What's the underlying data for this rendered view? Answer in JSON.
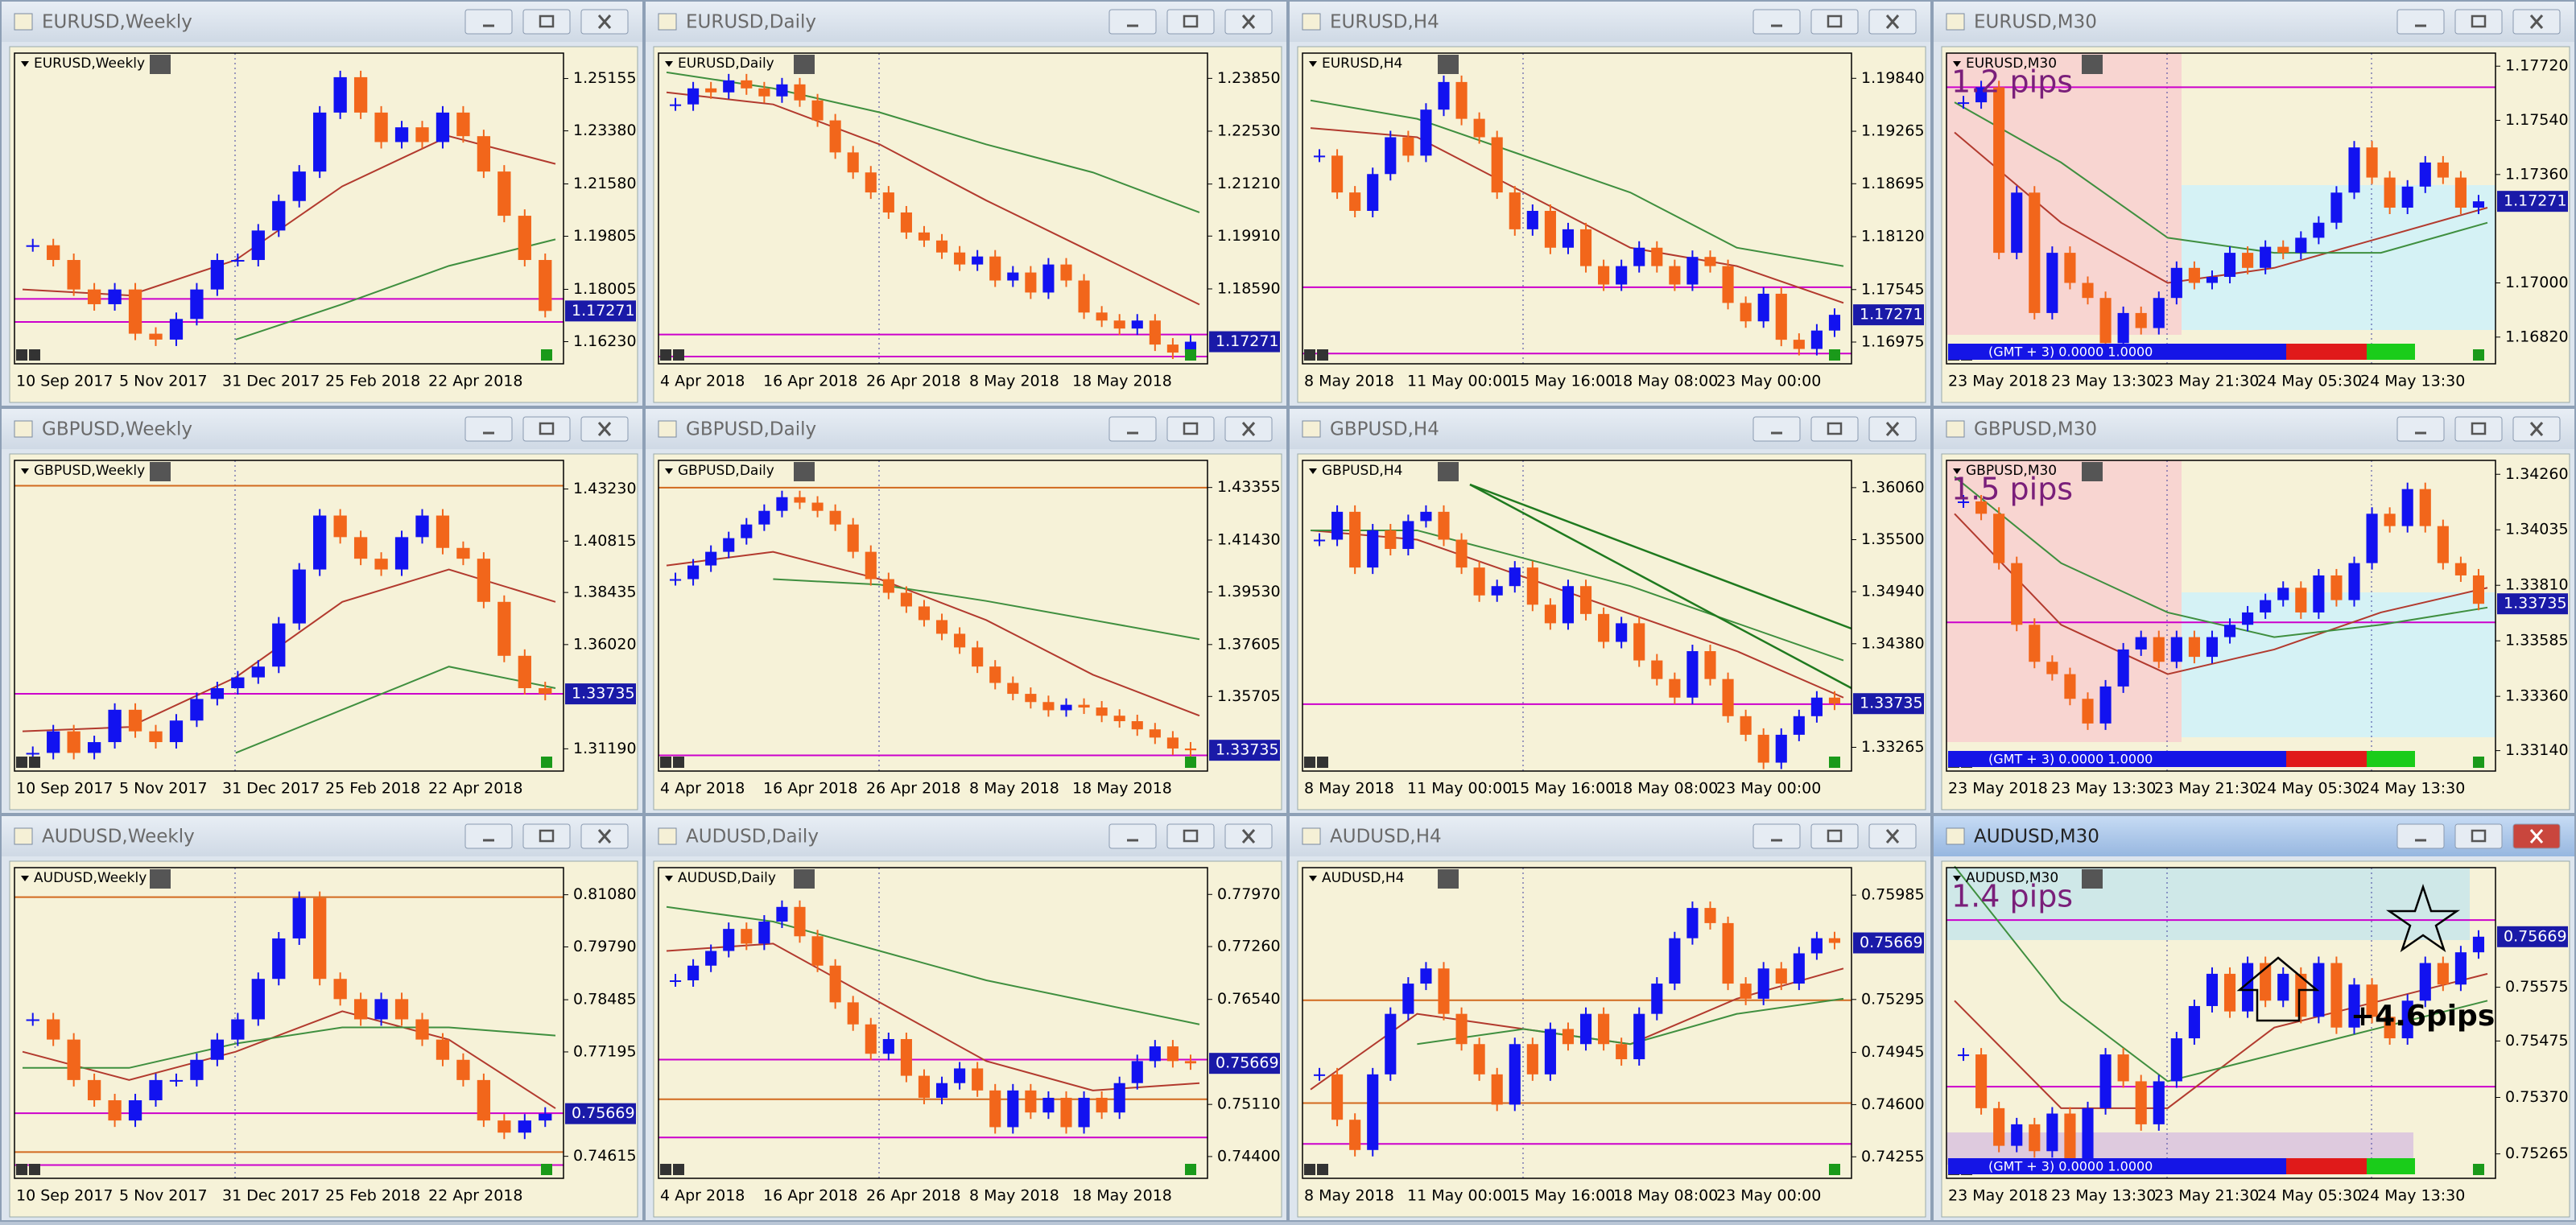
{
  "style": {
    "up": "#1212f0",
    "down": "#f2661b",
    "ma_fast": "#b23a2e",
    "ma_slow": "#3f8f3f",
    "price_box": "#1a1aa8"
  },
  "chart_data": [
    {
      "type": "candlestick",
      "title": "EURUSD,Weekly",
      "x_labels": [
        "10 Sep 2017",
        "5 Nov 2017",
        "31 Dec 2017",
        "25 Feb 2018",
        "22 Apr 2018"
      ],
      "ylim": [
        1.1567,
        1.2588
      ],
      "yticks": [
        1.25155,
        {
          "value": 1.2338,
          "label": "1.23380"
        },
        {
          "value": 1.2158,
          "label": "1.21580"
        },
        1.19805,
        1.18005,
        {
          "value": 1.1623,
          "label": "1.16230"
        }
      ],
      "price": 1.17271,
      "levels": [
        {
          "value": 1.1768,
          "color": "#cc00cc"
        },
        {
          "value": 1.169,
          "color": "#cc00cc"
        }
      ],
      "closes": [
        1.195,
        1.19,
        1.18,
        1.175,
        1.18,
        1.165,
        1.163,
        1.17,
        1.18,
        1.19,
        1.19,
        1.2,
        1.21,
        1.22,
        1.24,
        1.252,
        1.24,
        1.23,
        1.235,
        1.23,
        1.24,
        1.232,
        1.22,
        1.205,
        1.19,
        1.17271
      ],
      "ma_fast": [
        1.18,
        1.178,
        1.19,
        1.215,
        1.232,
        1.2226
      ],
      "ma_slow": [
        null,
        null,
        1.163,
        1.175,
        1.188,
        1.197
      ]
    },
    {
      "type": "candlestick",
      "title": "EURUSD,Daily",
      "x_labels": [
        "4 Apr 2018",
        "16 Apr 2018",
        "26 Apr 2018",
        "8 May 2018",
        "18 May 2018"
      ],
      "ylim": [
        1.1686,
        1.2438
      ],
      "yticks": [
        {
          "value": 1.2385,
          "label": "1.23850"
        },
        {
          "value": 1.2253,
          "label": "1.22530"
        },
        {
          "value": 1.2121,
          "label": "1.21210"
        },
        {
          "value": 1.1991,
          "label": "1.19910"
        },
        {
          "value": 1.1859,
          "label": "1.18590"
        }
      ],
      "price": 1.17271,
      "levels": [
        {
          "value": 1.1745,
          "color": "#cc00cc"
        },
        {
          "value": 1.169,
          "color": "#cc00cc"
        }
      ],
      "closes": [
        1.232,
        1.236,
        1.235,
        1.238,
        1.236,
        1.234,
        1.237,
        1.233,
        1.228,
        1.22,
        1.215,
        1.21,
        1.205,
        1.2,
        1.198,
        1.195,
        1.192,
        1.194,
        1.188,
        1.19,
        1.185,
        1.192,
        1.188,
        1.18,
        1.178,
        1.176,
        1.178,
        1.172,
        1.17,
        1.17271
      ],
      "ma_fast": [
        1.235,
        1.232,
        1.222,
        1.208,
        1.195,
        1.182
      ],
      "ma_slow": [
        1.24,
        1.236,
        1.23,
        1.222,
        1.215,
        1.205
      ]
    },
    {
      "type": "candlestick",
      "title": "EURUSD,H4",
      "x_labels": [
        "8 May 2018",
        "11 May 00:00",
        "15 May 16:00",
        "18 May 08:00",
        "23 May 00:00"
      ],
      "ylim": [
        1.168,
        1.2007
      ],
      "yticks": [
        {
          "value": 1.1984,
          "label": "1.19840"
        },
        1.19265,
        1.18695,
        {
          "value": 1.1812,
          "label": "1.18120"
        },
        1.17545,
        1.16975
      ],
      "price": 1.17271,
      "levels": [
        {
          "value": 1.1757,
          "color": "#cc00cc"
        },
        {
          "value": 1.1685,
          "color": "#cc00cc"
        }
      ],
      "closes": [
        1.19,
        1.186,
        1.184,
        1.188,
        1.192,
        1.19,
        1.195,
        1.198,
        1.194,
        1.192,
        1.186,
        1.182,
        1.184,
        1.18,
        1.182,
        1.178,
        1.176,
        1.178,
        1.18,
        1.178,
        1.176,
        1.179,
        1.178,
        1.174,
        1.172,
        1.175,
        1.17,
        1.169,
        1.171,
        1.17271
      ],
      "ma_fast": [
        1.193,
        1.192,
        1.186,
        1.18,
        1.178,
        1.174
      ],
      "ma_slow": [
        1.196,
        1.194,
        1.19,
        1.186,
        1.18,
        1.178
      ]
    },
    {
      "type": "candlestick",
      "title": "EURUSD,M30",
      "x_labels": [
        "23 May 2018",
        "23 May 13:30",
        "23 May 21:30",
        "24 May 05:30",
        "24 May 13:30"
      ],
      "ylim": [
        1.1675,
        1.1775
      ],
      "yticks": [
        {
          "value": 1.1772,
          "label": "1.17720"
        },
        {
          "value": 1.1754,
          "label": "1.17540"
        },
        {
          "value": 1.1736,
          "label": "1.17360"
        },
        {
          "value": 1.17,
          "label": "1.17000"
        },
        {
          "value": 1.1682,
          "label": "1.16820"
        }
      ],
      "price": 1.17271,
      "levels": [
        {
          "value": 1.1765,
          "color": "#cc00cc"
        }
      ],
      "pips": "1.2 pips",
      "status": "(GMT + 3) 0.0000 1.0000",
      "closes": [
        1.176,
        1.1765,
        1.171,
        1.173,
        1.169,
        1.171,
        1.17,
        1.1695,
        1.168,
        1.169,
        1.1685,
        1.1695,
        1.1705,
        1.17,
        1.1702,
        1.171,
        1.1705,
        1.1712,
        1.171,
        1.1715,
        1.172,
        1.173,
        1.1745,
        1.1735,
        1.1725,
        1.1732,
        1.174,
        1.1735,
        1.1725,
        1.17271
      ],
      "ma_fast": [
        1.175,
        1.172,
        1.17,
        1.1705,
        1.1715,
        1.1725
      ],
      "ma_slow": [
        1.176,
        1.174,
        1.1715,
        1.171,
        1.171,
        1.172
      ]
    },
    {
      "type": "candlestick",
      "title": "GBPUSD,Weekly",
      "x_labels": [
        "10 Sep 2017",
        "5 Nov 2017",
        "31 Dec 2017",
        "25 Feb 2018",
        "22 Apr 2018"
      ],
      "ylim": [
        1.3042,
        1.4437
      ],
      "yticks": [
        {
          "value": 1.4323,
          "label": "1.43230"
        },
        1.40815,
        1.38435,
        {
          "value": 1.3602,
          "label": "1.36020"
        },
        {
          "value": 1.3119,
          "label": "1.31190"
        }
      ],
      "price": 1.33735,
      "levels": [
        {
          "value": 1.4338,
          "color": "#d2691e"
        },
        {
          "value": 1.3374,
          "color": "#cc00cc"
        }
      ],
      "closes": [
        1.31,
        1.32,
        1.31,
        1.315,
        1.33,
        1.32,
        1.315,
        1.325,
        1.335,
        1.34,
        1.345,
        1.35,
        1.37,
        1.395,
        1.42,
        1.41,
        1.4,
        1.395,
        1.41,
        1.42,
        1.405,
        1.4,
        1.38,
        1.355,
        1.34,
        1.33735
      ],
      "ma_fast": [
        1.32,
        1.322,
        1.345,
        1.38,
        1.395,
        1.38
      ],
      "ma_slow": [
        null,
        null,
        1.31,
        1.33,
        1.35,
        1.34
      ]
    },
    {
      "type": "candlestick",
      "title": "GBPUSD,Daily",
      "x_labels": [
        "4 Apr 2018",
        "16 Apr 2018",
        "26 Apr 2018",
        "8 May 2018",
        "18 May 2018"
      ],
      "ylim": [
        1.3318,
        1.442
      ],
      "yticks": [
        1.43355,
        {
          "value": 1.4143,
          "label": "1.41430"
        },
        {
          "value": 1.3953,
          "label": "1.39530"
        },
        1.37605,
        1.35705
      ],
      "price": 1.33735,
      "levels": [
        {
          "value": 1.4335,
          "color": "#d2691e"
        },
        {
          "value": 1.3355,
          "color": "#cc00cc"
        }
      ],
      "closes": [
        1.4,
        1.405,
        1.41,
        1.415,
        1.42,
        1.425,
        1.43,
        1.428,
        1.425,
        1.42,
        1.41,
        1.4,
        1.395,
        1.39,
        1.385,
        1.38,
        1.375,
        1.368,
        1.362,
        1.358,
        1.355,
        1.352,
        1.354,
        1.353,
        1.35,
        1.348,
        1.345,
        1.342,
        1.338,
        1.33735
      ],
      "ma_fast": [
        1.405,
        1.41,
        1.4,
        1.385,
        1.365,
        1.35
      ],
      "ma_slow": [
        null,
        1.4,
        1.398,
        1.392,
        1.385,
        1.378
      ]
    },
    {
      "type": "candlestick",
      "title": "GBPUSD,H4",
      "x_labels": [
        "8 May 2018",
        "11 May 00:00",
        "15 May 16:00",
        "18 May 08:00",
        "23 May 00:00"
      ],
      "ylim": [
        1.3307,
        1.3631
      ],
      "yticks": [
        {
          "value": 1.3606,
          "label": "1.36060"
        },
        {
          "value": 1.355,
          "label": "1.35500"
        },
        {
          "value": 1.3494,
          "label": "1.34940"
        },
        {
          "value": 1.3438,
          "label": "1.34380"
        },
        1.33265
      ],
      "price": 1.33735,
      "levels": [
        {
          "value": 1.3373,
          "color": "#cc00cc"
        }
      ],
      "closes": [
        1.355,
        1.358,
        1.352,
        1.356,
        1.354,
        1.357,
        1.358,
        1.355,
        1.352,
        1.349,
        1.35,
        1.352,
        1.348,
        1.346,
        1.35,
        1.347,
        1.344,
        1.346,
        1.342,
        1.34,
        1.338,
        1.343,
        1.34,
        1.336,
        1.334,
        1.331,
        1.334,
        1.336,
        1.338,
        1.33735
      ],
      "ma_fast": [
        1.356,
        1.355,
        1.351,
        1.347,
        1.343,
        1.338
      ],
      "ma_slow": [
        1.356,
        1.356,
        1.353,
        1.35,
        1.346,
        1.342
      ]
    },
    {
      "type": "candlestick",
      "title": "GBPUSD,M30",
      "x_labels": [
        "23 May 2018",
        "23 May 13:30",
        "23 May 21:30",
        "24 May 05:30",
        "24 May 13:30"
      ],
      "ylim": [
        1.3308,
        1.343
      ],
      "yticks": [
        {
          "value": 1.3426,
          "label": "1.34260"
        },
        1.34035,
        {
          "value": 1.3381,
          "label": "1.33810"
        },
        1.33585,
        {
          "value": 1.3336,
          "label": "1.33360"
        },
        {
          "value": 1.3314,
          "label": "1.33140"
        }
      ],
      "price": 1.33735,
      "levels": [
        {
          "value": 1.3366,
          "color": "#cc00cc"
        }
      ],
      "pips": "1.5 pips",
      "status": "(GMT + 3) 0.0000 1.0000",
      "closes": [
        1.3415,
        1.341,
        1.339,
        1.3365,
        1.335,
        1.3345,
        1.3335,
        1.3325,
        1.334,
        1.3355,
        1.336,
        1.335,
        1.336,
        1.3352,
        1.336,
        1.3365,
        1.337,
        1.3375,
        1.338,
        1.337,
        1.3385,
        1.3375,
        1.339,
        1.341,
        1.3405,
        1.342,
        1.3405,
        1.339,
        1.3385,
        1.33735
      ],
      "ma_fast": [
        1.341,
        1.3365,
        1.3345,
        1.3355,
        1.337,
        1.338
      ],
      "ma_slow": [
        1.3425,
        1.339,
        1.337,
        1.336,
        1.3365,
        1.3372
      ]
    },
    {
      "type": "candlestick",
      "title": "AUDUSD,Weekly",
      "x_labels": [
        "10 Sep 2017",
        "5 Nov 2017",
        "31 Dec 2017",
        "25 Feb 2018",
        "22 Apr 2018"
      ],
      "ylim": [
        0.7421,
        0.8165
      ],
      "yticks": [
        {
          "value": 0.8108,
          "label": "0.81080"
        },
        {
          "value": 0.7979,
          "label": "0.79790"
        },
        0.78485,
        0.77195,
        0.74615
      ],
      "price": 0.75669,
      "levels": [
        {
          "value": 0.8102,
          "color": "#d2691e"
        },
        {
          "value": 0.7568,
          "color": "#cc00cc"
        },
        {
          "value": 0.7472,
          "color": "#d2691e"
        },
        {
          "value": 0.744,
          "color": "#cc00cc"
        }
      ],
      "closes": [
        0.78,
        0.775,
        0.765,
        0.76,
        0.755,
        0.76,
        0.765,
        0.765,
        0.77,
        0.775,
        0.78,
        0.79,
        0.8,
        0.81,
        0.79,
        0.785,
        0.78,
        0.785,
        0.78,
        0.775,
        0.77,
        0.765,
        0.755,
        0.752,
        0.755,
        0.75669
      ],
      "ma_fast": [
        0.772,
        0.765,
        0.772,
        0.782,
        0.775,
        0.758
      ],
      "ma_slow": [
        0.768,
        0.768,
        0.774,
        0.778,
        0.778,
        0.776
      ]
    },
    {
      "type": "candlestick",
      "title": "AUDUSD,Daily",
      "x_labels": [
        "4 Apr 2018",
        "16 Apr 2018",
        "26 Apr 2018",
        "8 May 2018",
        "18 May 2018"
      ],
      "ylim": [
        0.7418,
        0.7828
      ],
      "yticks": [
        {
          "value": 0.7797,
          "label": "0.77970"
        },
        {
          "value": 0.7726,
          "label": "0.77260"
        },
        {
          "value": 0.7654,
          "label": "0.76540"
        },
        {
          "value": 0.7511,
          "label": "0.75110"
        },
        {
          "value": 0.744,
          "label": "0.74400"
        }
      ],
      "price": 0.75669,
      "levels": [
        {
          "value": 0.7572,
          "color": "#cc00cc"
        },
        {
          "value": 0.7518,
          "color": "#d2691e"
        },
        {
          "value": 0.7466,
          "color": "#cc00cc"
        }
      ],
      "closes": [
        0.768,
        0.77,
        0.772,
        0.775,
        0.773,
        0.776,
        0.778,
        0.774,
        0.77,
        0.765,
        0.762,
        0.758,
        0.76,
        0.755,
        0.752,
        0.754,
        0.756,
        0.753,
        0.748,
        0.753,
        0.75,
        0.752,
        0.748,
        0.752,
        0.75,
        0.754,
        0.757,
        0.759,
        0.757,
        0.75669
      ],
      "ma_fast": [
        0.772,
        0.773,
        0.765,
        0.757,
        0.753,
        0.754
      ],
      "ma_slow": [
        0.778,
        0.776,
        0.772,
        0.768,
        0.765,
        0.762
      ]
    },
    {
      "type": "candlestick",
      "title": "AUDUSD,H4",
      "x_labels": [
        "8 May 2018",
        "11 May 00:00",
        "15 May 16:00",
        "18 May 08:00",
        "23 May 00:00"
      ],
      "ylim": [
        0.7415,
        0.7614
      ],
      "yticks": [
        0.75985,
        0.75295,
        0.74945,
        {
          "value": 0.746,
          "label": "0.74600"
        },
        0.74255
      ],
      "price": 0.75669,
      "levels": [
        {
          "value": 0.7529,
          "color": "#d2691e"
        },
        {
          "value": 0.7461,
          "color": "#d2691e"
        },
        {
          "value": 0.7434,
          "color": "#cc00cc"
        }
      ],
      "closes": [
        0.748,
        0.745,
        0.743,
        0.748,
        0.752,
        0.754,
        0.755,
        0.752,
        0.75,
        0.748,
        0.746,
        0.75,
        0.748,
        0.751,
        0.75,
        0.752,
        0.75,
        0.749,
        0.752,
        0.754,
        0.757,
        0.759,
        0.758,
        0.754,
        0.753,
        0.755,
        0.754,
        0.756,
        0.757,
        0.75669
      ],
      "ma_fast": [
        0.747,
        0.752,
        0.751,
        0.75,
        0.753,
        0.755
      ],
      "ma_slow": [
        null,
        0.75,
        0.751,
        0.75,
        0.752,
        0.753
      ]
    },
    {
      "type": "candlestick",
      "title": "AUDUSD,M30",
      "x_labels": [
        "23 May 2018",
        "23 May 13:30",
        "23 May 21:30",
        "24 May 05:30",
        "24 May 13:30"
      ],
      "ylim": [
        0.7523,
        0.7579
      ],
      "yticks": [
        0.75575,
        0.75475,
        {
          "value": 0.7537,
          "label": "0.75370"
        },
        0.75265
      ],
      "price": 0.75669,
      "levels": [
        {
          "value": 0.7539,
          "color": "#cc00cc"
        },
        {
          "value": 0.757,
          "color": "#cc00cc"
        }
      ],
      "pips": "1.4 pips",
      "annotation": "+4.6pips",
      "status": "(GMT + 3) 0.0000 1.0000",
      "closes": [
        0.7545,
        0.7535,
        0.7528,
        0.7532,
        0.7527,
        0.7534,
        0.7525,
        0.7535,
        0.7545,
        0.754,
        0.7532,
        0.754,
        0.7548,
        0.7554,
        0.756,
        0.7553,
        0.7562,
        0.7555,
        0.756,
        0.7552,
        0.7562,
        0.755,
        0.7558,
        0.7552,
        0.7548,
        0.7555,
        0.7562,
        0.7558,
        0.7564,
        0.75669
      ],
      "ma_fast": [
        0.7555,
        0.7535,
        0.7535,
        0.755,
        0.7555,
        0.756
      ],
      "ma_slow": [
        0.758,
        0.7555,
        0.754,
        0.7545,
        0.755,
        0.7555
      ]
    }
  ]
}
